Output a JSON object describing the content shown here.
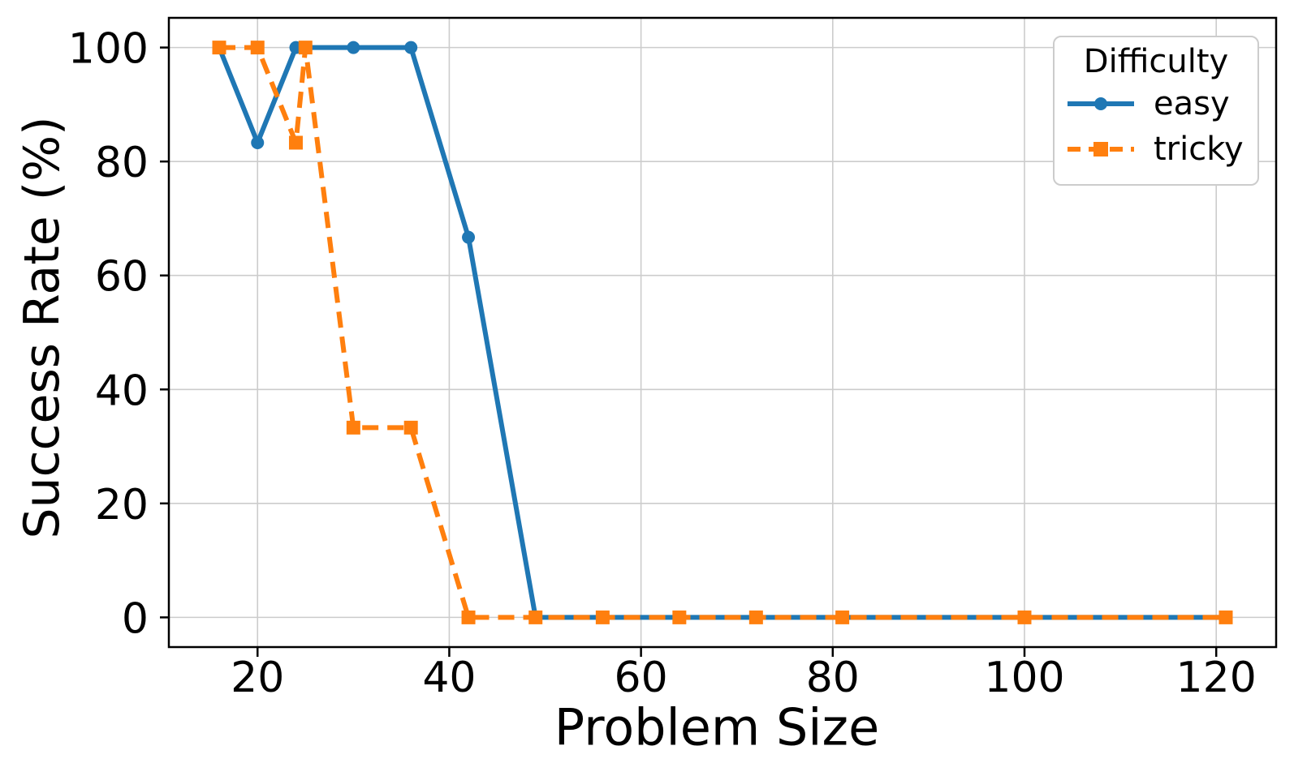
{
  "chart_data": {
    "type": "line",
    "title": "",
    "xlabel": "Problem Size",
    "ylabel": "Success Rate (%)",
    "x": [
      16,
      20,
      24,
      25,
      30,
      36,
      42,
      49,
      56,
      64,
      72,
      81,
      100,
      121
    ],
    "series": [
      {
        "name": "easy",
        "color": "#1f77b4",
        "linestyle": "solid",
        "marker": "circle",
        "values": [
          100,
          83.3,
          100,
          100,
          100,
          100,
          66.7,
          0,
          0,
          0,
          0,
          0,
          0,
          0
        ]
      },
      {
        "name": "tricky",
        "color": "#ff7f0e",
        "linestyle": "dashed",
        "marker": "square",
        "values": [
          100,
          100,
          83.3,
          100,
          33.3,
          33.3,
          0,
          0,
          0,
          0,
          0,
          0,
          0,
          0
        ]
      }
    ],
    "xticks": [
      20,
      40,
      60,
      80,
      100,
      120
    ],
    "yticks": [
      0,
      20,
      40,
      60,
      80,
      100
    ],
    "xlim": [
      10.75,
      126.25
    ],
    "ylim": [
      -5.21,
      105.21
    ],
    "grid": true,
    "legend": {
      "title": "Difficulty",
      "position": "top-right"
    }
  },
  "colors": {
    "easy": "#1f77b4",
    "tricky": "#ff7f0e",
    "grid": "#cccccc",
    "spine": "#000000",
    "background": "#ffffff"
  }
}
